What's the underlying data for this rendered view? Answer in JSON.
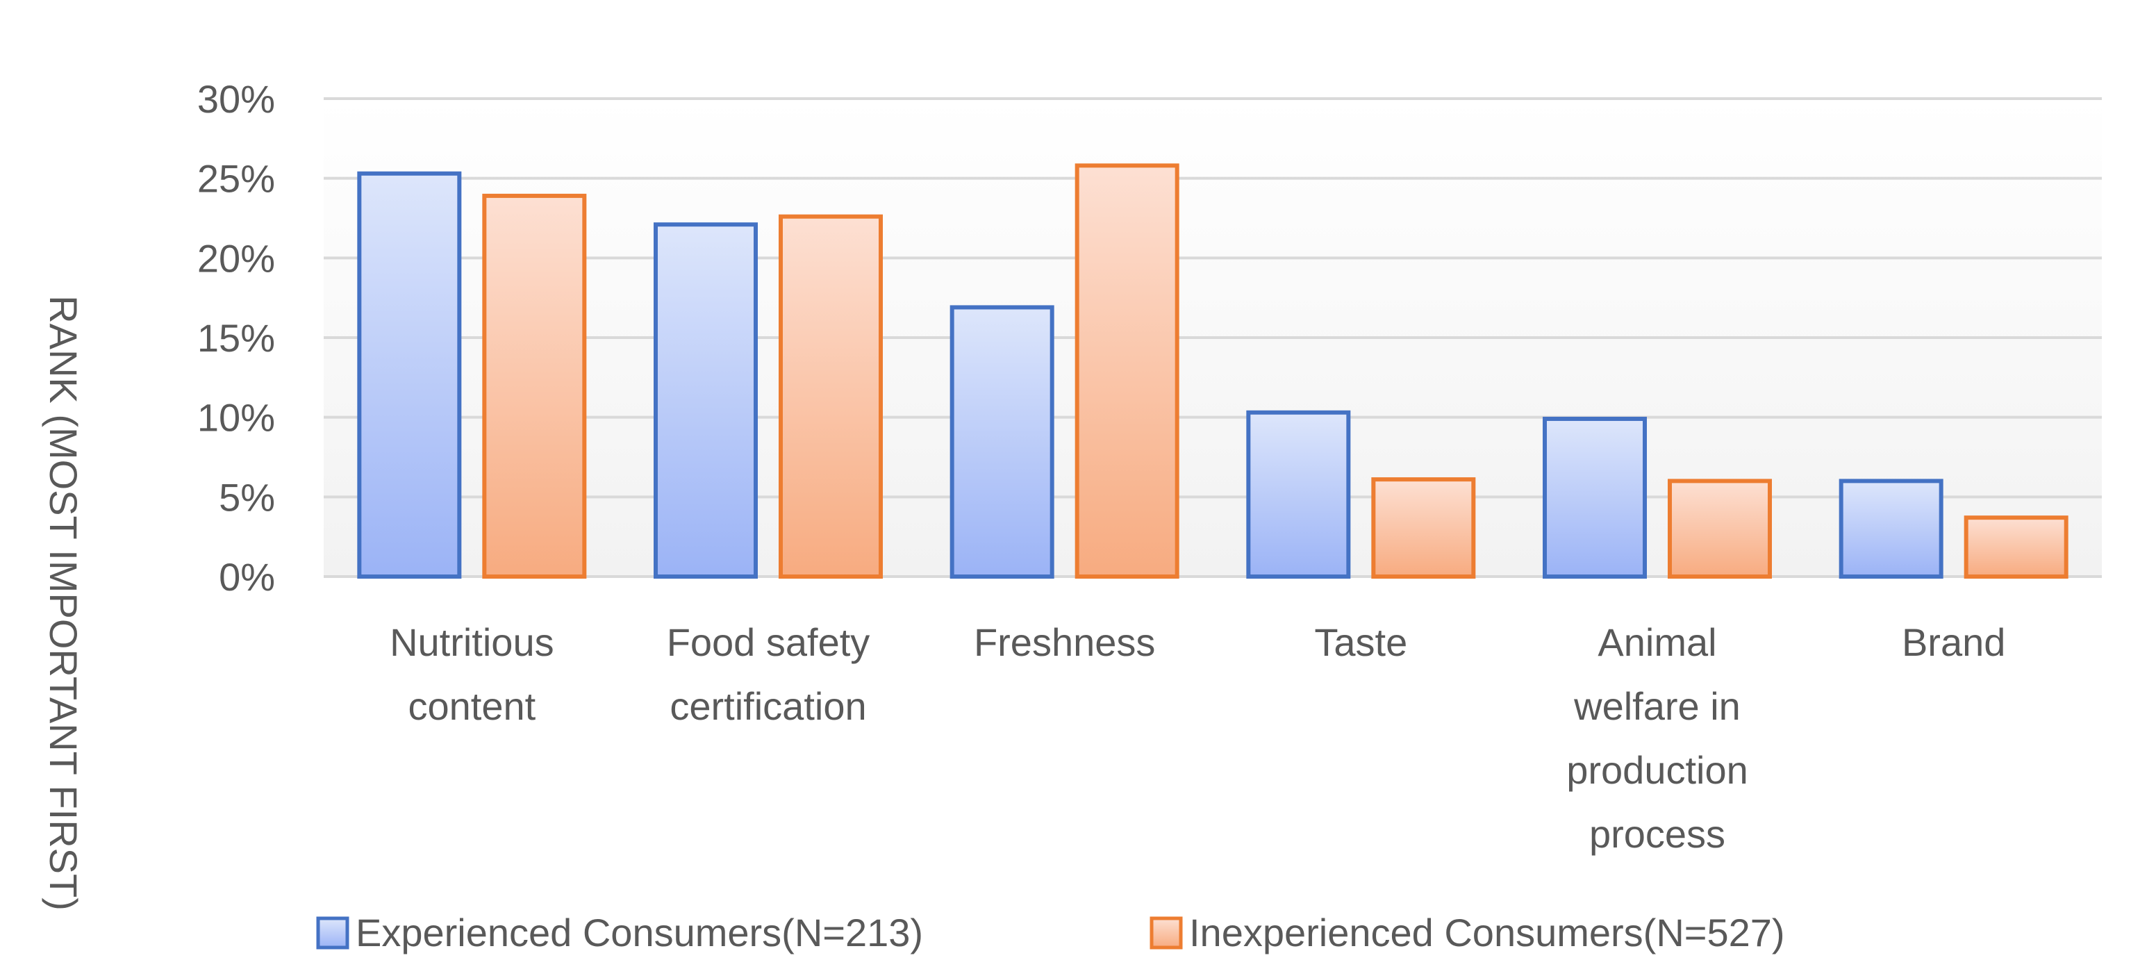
{
  "chart_data": {
    "type": "bar",
    "title": "",
    "xlabel": "",
    "ylabel": "RANK (MOST IMPORTANT FIRST)",
    "ylim": [
      0,
      30
    ],
    "yticks": [
      {
        "value": 0,
        "label": "0%"
      },
      {
        "value": 5,
        "label": "5%"
      },
      {
        "value": 10,
        "label": "10%"
      },
      {
        "value": 15,
        "label": "15%"
      },
      {
        "value": 20,
        "label": "20%"
      },
      {
        "value": 25,
        "label": "25%"
      },
      {
        "value": 30,
        "label": "30%"
      }
    ],
    "grid": true,
    "legend_position": "bottom",
    "categories": [
      {
        "lines": [
          "Nutritious",
          "content"
        ]
      },
      {
        "lines": [
          "Food safety",
          "certification"
        ]
      },
      {
        "lines": [
          "Freshness"
        ]
      },
      {
        "lines": [
          "Taste"
        ]
      },
      {
        "lines": [
          "Animal",
          "welfare in",
          "production",
          "process"
        ]
      },
      {
        "lines": [
          "Brand"
        ]
      }
    ],
    "series": [
      {
        "name": "Experienced Consumers(N=213)",
        "values": [
          25.3,
          22.1,
          16.9,
          10.3,
          9.9,
          6.0
        ],
        "colors": {
          "top": "#dde6fb",
          "bottom": "#9bb3f6",
          "stroke": "#4472c4"
        }
      },
      {
        "name": "Inexperienced Consumers(N=527)",
        "values": [
          23.9,
          22.6,
          25.8,
          6.1,
          6.0,
          3.7
        ],
        "colors": {
          "top": "#fde0d3",
          "bottom": "#f7ab80",
          "stroke": "#ed7d31"
        }
      }
    ],
    "colors": {
      "grid": "#d9d9d9",
      "text": "#595959",
      "plot_bg_top": "#ffffff",
      "plot_bg_bottom": "#f2f2f2"
    }
  }
}
